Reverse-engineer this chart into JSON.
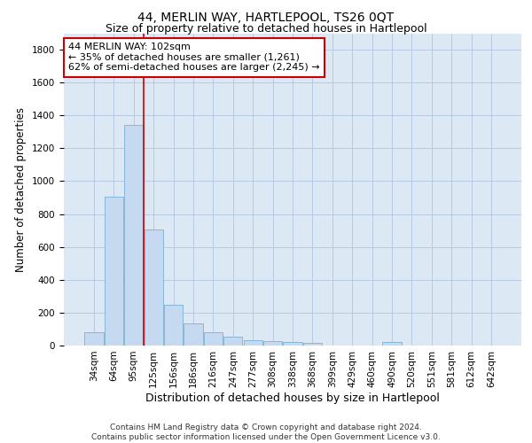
{
  "title": "44, MERLIN WAY, HARTLEPOOL, TS26 0QT",
  "subtitle": "Size of property relative to detached houses in Hartlepool",
  "xlabel": "Distribution of detached houses by size in Hartlepool",
  "ylabel": "Number of detached properties",
  "categories": [
    "34sqm",
    "64sqm",
    "95sqm",
    "125sqm",
    "156sqm",
    "186sqm",
    "216sqm",
    "247sqm",
    "277sqm",
    "308sqm",
    "338sqm",
    "368sqm",
    "399sqm",
    "429sqm",
    "460sqm",
    "490sqm",
    "520sqm",
    "551sqm",
    "581sqm",
    "612sqm",
    "642sqm"
  ],
  "values": [
    80,
    905,
    1340,
    705,
    250,
    135,
    80,
    55,
    30,
    25,
    20,
    15,
    0,
    0,
    0,
    20,
    0,
    0,
    0,
    0,
    0
  ],
  "bar_color": "#c5d9f0",
  "bar_edge_color": "#7bafd4",
  "vline_color": "#cc0000",
  "vline_x_index": 2,
  "annotation_text": "44 MERLIN WAY: 102sqm\n← 35% of detached houses are smaller (1,261)\n62% of semi-detached houses are larger (2,245) →",
  "annotation_box_facecolor": "#ffffff",
  "annotation_box_edgecolor": "#cc0000",
  "ylim": [
    0,
    1900
  ],
  "yticks": [
    0,
    200,
    400,
    600,
    800,
    1000,
    1200,
    1400,
    1600,
    1800
  ],
  "bg_color": "#ffffff",
  "plot_bg_color": "#dce9f5",
  "grid_color": "#b0c4de",
  "title_fontsize": 10,
  "subtitle_fontsize": 9,
  "xlabel_fontsize": 9,
  "ylabel_fontsize": 8.5,
  "tick_fontsize": 7.5,
  "annotation_fontsize": 8,
  "footer_fontsize": 6.5,
  "footer": "Contains HM Land Registry data © Crown copyright and database right 2024.\nContains public sector information licensed under the Open Government Licence v3.0."
}
